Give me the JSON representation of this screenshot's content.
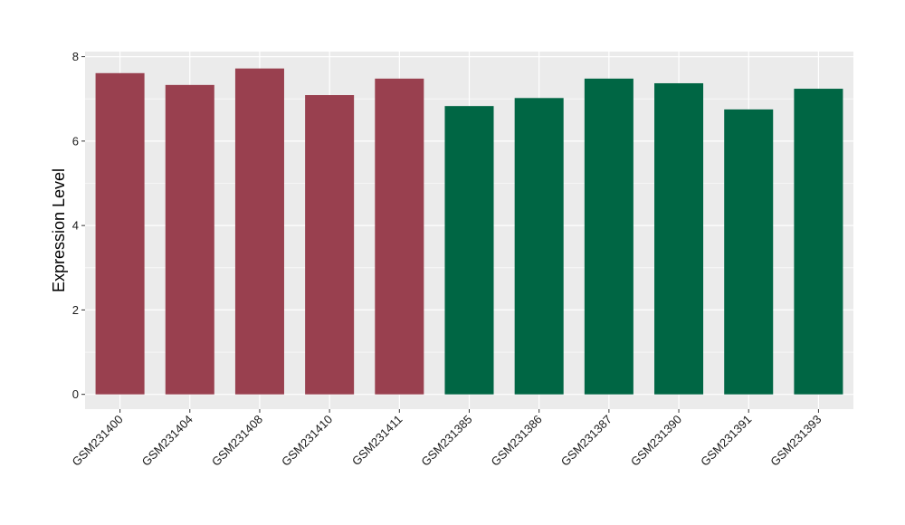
{
  "chart_data": {
    "type": "bar",
    "title": "",
    "xlabel": "",
    "ylabel": "Expression Level",
    "ylim": [
      -0.35,
      8.12
    ],
    "yticks": [
      0,
      2,
      4,
      6,
      8
    ],
    "ytick_labels": [
      "0",
      "2",
      "4",
      "6",
      "8"
    ],
    "grid": true,
    "legend": "none",
    "categories": [
      "GSM231400",
      "GSM231404",
      "GSM231408",
      "GSM231410",
      "GSM231411",
      "GSM231385",
      "GSM231386",
      "GSM231387",
      "GSM231390",
      "GSM231391",
      "GSM231393"
    ],
    "values": [
      7.61,
      7.33,
      7.72,
      7.09,
      7.48,
      6.83,
      7.02,
      7.48,
      7.37,
      6.75,
      7.24
    ],
    "bar_colors": [
      "#99404f",
      "#99404f",
      "#99404f",
      "#99404f",
      "#99404f",
      "#006644",
      "#006644",
      "#006644",
      "#006644",
      "#006644",
      "#006644"
    ],
    "panel_background": "#ebebeb",
    "grid_color": "#ffffff"
  }
}
